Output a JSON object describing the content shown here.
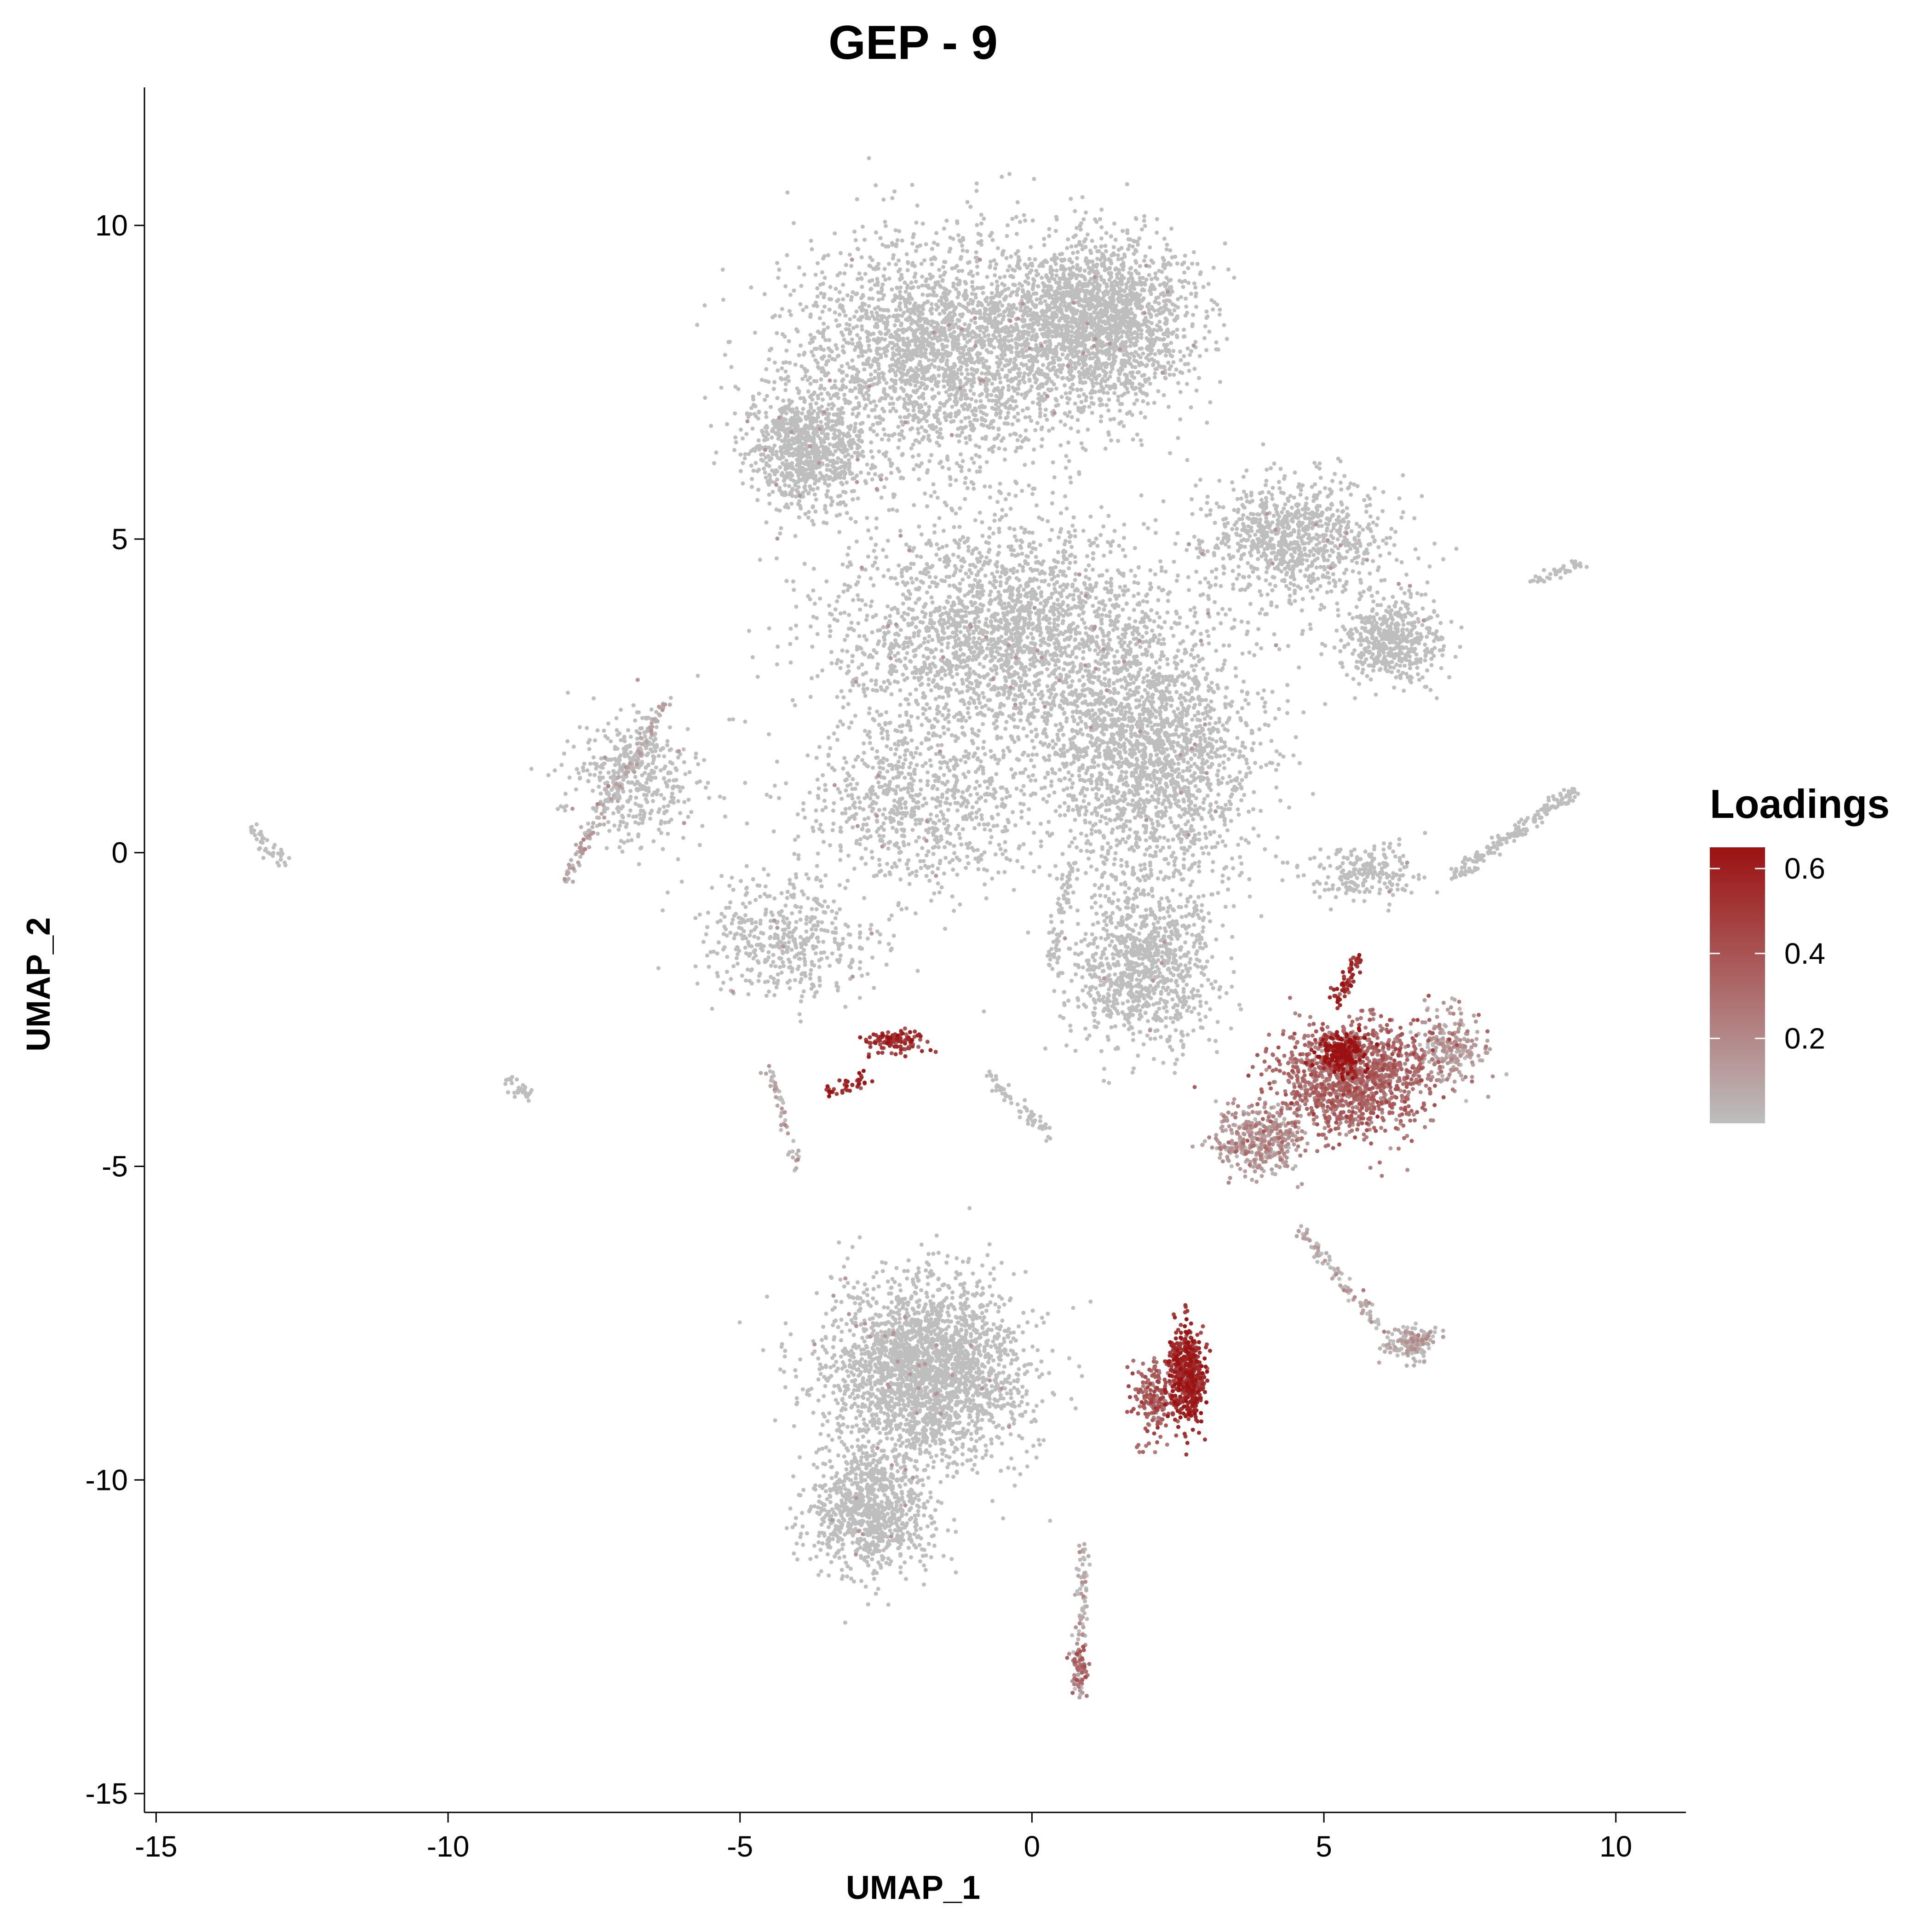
{
  "chart_data": {
    "type": "scatter",
    "title": "GEP - 9",
    "xlabel": "UMAP_1",
    "ylabel": "UMAP_2",
    "xlim": [
      -15.2,
      11.2
    ],
    "ylim": [
      -15.3,
      12.2
    ],
    "x_ticks": [
      -15,
      -10,
      -5,
      0,
      5,
      10
    ],
    "y_ticks": [
      -15,
      -10,
      -5,
      0,
      5,
      10
    ],
    "grid": false,
    "legend": {
      "title": "Loadings",
      "placement": "right",
      "min": 0,
      "max": 0.65,
      "ticks": [
        0.2,
        0.4,
        0.6
      ],
      "tick_labels": [
        "0.2",
        "0.4",
        "0.6"
      ],
      "color_low": "#bebebe",
      "color_high": "#9b1111"
    },
    "point_color": "#bebebe",
    "clusters": [
      {
        "x": -1.5,
        "y": 8.0,
        "sx": 2.4,
        "sy": 1.6,
        "n": 2600,
        "v": 0.0
      },
      {
        "x": 1.2,
        "y": 8.5,
        "sx": 1.4,
        "sy": 1.2,
        "n": 1800,
        "v": 0.0
      },
      {
        "x": -3.8,
        "y": 6.4,
        "sx": 0.9,
        "sy": 0.8,
        "n": 900,
        "v": 0.0
      },
      {
        "x": -0.5,
        "y": 3.5,
        "sx": 2.6,
        "sy": 1.6,
        "n": 2400,
        "v": 0.0
      },
      {
        "x": 2.0,
        "y": 1.6,
        "sx": 1.7,
        "sy": 1.8,
        "n": 2000,
        "v": 0.0
      },
      {
        "x": 4.5,
        "y": 5.0,
        "sx": 1.5,
        "sy": 0.9,
        "n": 900,
        "v": 0.0
      },
      {
        "x": 6.2,
        "y": 3.4,
        "sx": 0.8,
        "sy": 0.6,
        "n": 500,
        "v": 0.0
      },
      {
        "x": -2.0,
        "y": 0.8,
        "sx": 1.8,
        "sy": 1.2,
        "n": 800,
        "v": 0.0
      },
      {
        "x": 1.9,
        "y": -1.8,
        "sx": 1.2,
        "sy": 1.2,
        "n": 1000,
        "v": 0.0
      },
      {
        "x": -6.8,
        "y": 1.2,
        "sx": 1.0,
        "sy": 0.9,
        "n": 420,
        "v": 0.0
      },
      {
        "x": -4.2,
        "y": -1.4,
        "sx": 1.4,
        "sy": 0.9,
        "n": 460,
        "v": 0.0
      },
      {
        "x": 5.7,
        "y": -0.3,
        "sx": 0.9,
        "sy": 0.4,
        "n": 220,
        "v": 0.0
      },
      {
        "x": 5.5,
        "y": -3.6,
        "sx": 1.2,
        "sy": 0.8,
        "n": 1300,
        "v": 0.3
      },
      {
        "x": 5.3,
        "y": -3.2,
        "sx": 0.3,
        "sy": 0.3,
        "n": 260,
        "v": 0.6
      },
      {
        "x": 3.9,
        "y": -4.6,
        "sx": 0.7,
        "sy": 0.5,
        "n": 380,
        "v": 0.15
      },
      {
        "x": 7.2,
        "y": -3.1,
        "sx": 0.5,
        "sy": 0.5,
        "n": 220,
        "v": 0.12
      },
      {
        "x": -1.8,
        "y": -8.3,
        "sx": 1.5,
        "sy": 1.3,
        "n": 2500,
        "v": 0.0
      },
      {
        "x": -2.8,
        "y": -10.5,
        "sx": 0.9,
        "sy": 0.9,
        "n": 900,
        "v": 0.0
      },
      {
        "x": 2.65,
        "y": -8.3,
        "sx": 0.28,
        "sy": 0.7,
        "n": 480,
        "v": 0.55
      },
      {
        "x": 2.1,
        "y": -8.7,
        "sx": 0.35,
        "sy": 0.6,
        "n": 180,
        "v": 0.35
      },
      {
        "x": -2.3,
        "y": -3.0,
        "sx": 0.45,
        "sy": 0.18,
        "n": 120,
        "v": 0.5
      },
      {
        "x": 6.5,
        "y": -7.8,
        "sx": 0.4,
        "sy": 0.25,
        "n": 160,
        "v": 0.05
      },
      {
        "x": 0.8,
        "y": -13.0,
        "sx": 0.15,
        "sy": 0.35,
        "n": 60,
        "v": 0.3
      }
    ],
    "streaks": [
      {
        "x1": 7.2,
        "y1": -0.4,
        "x2": 9.3,
        "y2": 1.0,
        "n": 180,
        "v": 0.0
      },
      {
        "x1": 8.5,
        "y1": 4.3,
        "x2": 9.4,
        "y2": 4.6,
        "n": 40,
        "v": 0.0
      },
      {
        "x1": -13.4,
        "y1": 0.4,
        "x2": -12.8,
        "y2": -0.2,
        "n": 40,
        "v": 0.0
      },
      {
        "x1": -9.0,
        "y1": -3.6,
        "x2": -8.6,
        "y2": -3.9,
        "n": 30,
        "v": 0.0
      },
      {
        "x1": -8.0,
        "y1": -0.4,
        "x2": -6.2,
        "y2": 2.5,
        "n": 160,
        "v": 0.05
      },
      {
        "x1": -4.5,
        "y1": -3.4,
        "x2": -4.0,
        "y2": -5.0,
        "n": 50,
        "v": 0.05
      },
      {
        "x1": 0.9,
        "y1": -11.0,
        "x2": 0.8,
        "y2": -13.5,
        "n": 90,
        "v": 0.05
      },
      {
        "x1": -0.8,
        "y1": -3.5,
        "x2": 0.3,
        "y2": -4.5,
        "n": 60,
        "v": 0.0
      },
      {
        "x1": 4.6,
        "y1": -6.0,
        "x2": 6.0,
        "y2": -7.6,
        "n": 90,
        "v": 0.05
      },
      {
        "x1": 5.2,
        "y1": -2.4,
        "x2": 5.6,
        "y2": -1.7,
        "n": 60,
        "v": 0.55
      },
      {
        "x1": -3.5,
        "y1": -3.8,
        "x2": -2.8,
        "y2": -3.6,
        "n": 40,
        "v": 0.55
      },
      {
        "x1": 0.7,
        "y1": -0.2,
        "x2": 0.3,
        "y2": -1.8,
        "n": 60,
        "v": 0.0
      }
    ]
  }
}
